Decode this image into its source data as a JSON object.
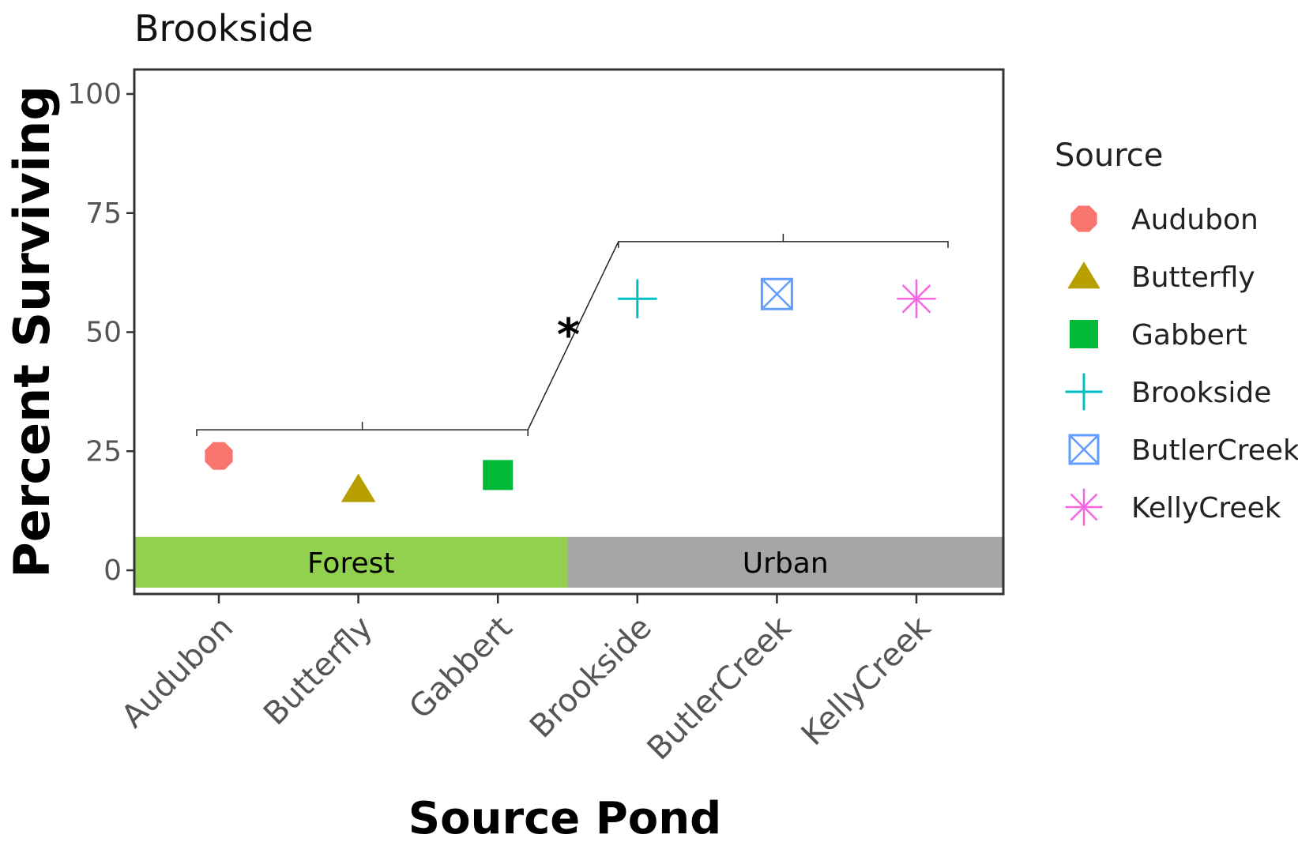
{
  "chart_data": {
    "type": "scatter",
    "title": "Brookside",
    "xlabel": "Source Pond",
    "ylabel": "Percent Surviving",
    "categories": [
      "Audubon",
      "Butterfly",
      "Gabbert",
      "Brookside",
      "ButlerCreek",
      "KellyCreek"
    ],
    "ylim": [
      0,
      100
    ],
    "yticks": [
      0,
      25,
      50,
      75,
      100
    ],
    "grid": false,
    "legend": {
      "title": "Source",
      "placement": "right"
    },
    "series": [
      {
        "name": "Audubon",
        "x": "Audubon",
        "value": 24,
        "shape": "octagon",
        "color": "#F8766D"
      },
      {
        "name": "Butterfly",
        "x": "Butterfly",
        "value": 17,
        "shape": "triangle",
        "color": "#B79F00"
      },
      {
        "name": "Gabbert",
        "x": "Gabbert",
        "value": 20,
        "shape": "square",
        "color": "#00BA38"
      },
      {
        "name": "Brookside",
        "x": "Brookside",
        "value": 57,
        "shape": "plus",
        "color": "#00BFC4"
      },
      {
        "name": "ButlerCreek",
        "x": "ButlerCreek",
        "value": 58,
        "shape": "square-cross",
        "color": "#619CFF"
      },
      {
        "name": "KellyCreek",
        "x": "KellyCreek",
        "value": 57,
        "shape": "asterisk",
        "color": "#F564E3"
      }
    ],
    "habitat_bands": [
      {
        "label": "Forest",
        "from": "Audubon",
        "to": "Gabbert",
        "color": "#92D050"
      },
      {
        "label": "Urban",
        "from": "Brookside",
        "to": "KellyCreek",
        "color": "#A6A6A6"
      }
    ],
    "significance": {
      "marker": "*",
      "forest_bracket_y": 29.5,
      "urban_bracket_y": 69
    }
  }
}
